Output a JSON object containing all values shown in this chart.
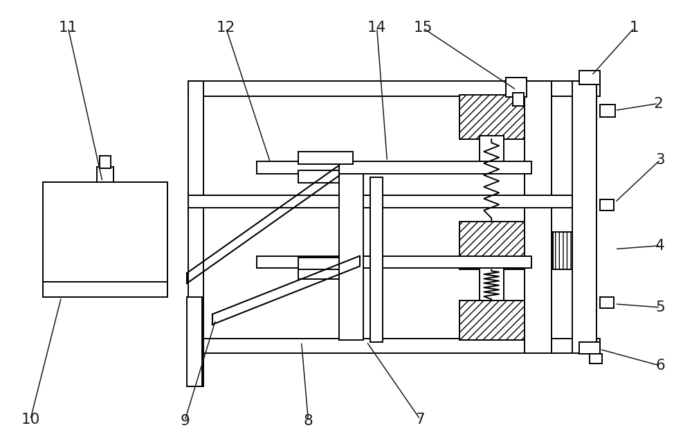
{
  "bg_color": "#ffffff",
  "line_color": "#000000",
  "fig_width": 10.0,
  "fig_height": 6.47
}
